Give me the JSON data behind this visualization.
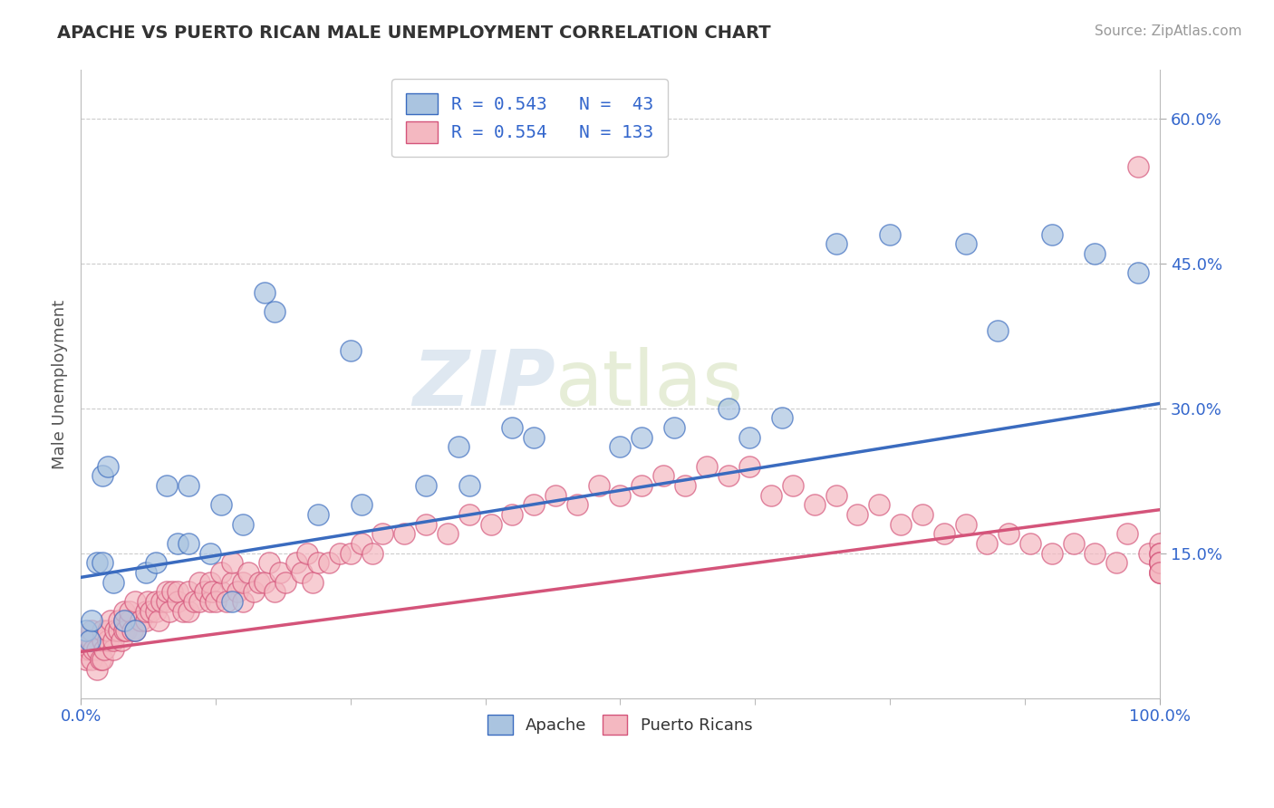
{
  "title": "APACHE VS PUERTO RICAN MALE UNEMPLOYMENT CORRELATION CHART",
  "source_text": "Source: ZipAtlas.com",
  "ylabel": "Male Unemployment",
  "xlim": [
    0.0,
    1.0
  ],
  "ylim": [
    0.0,
    0.65
  ],
  "xtick_labels": [
    "0.0%",
    "100.0%"
  ],
  "xtick_positions": [
    0.0,
    1.0
  ],
  "ytick_labels": [
    "15.0%",
    "30.0%",
    "45.0%",
    "60.0%"
  ],
  "ytick_positions": [
    0.15,
    0.3,
    0.45,
    0.6
  ],
  "apache_color": "#aac4e0",
  "apache_line_color": "#3a6bbf",
  "pr_color": "#f4b8c1",
  "pr_line_color": "#d4547a",
  "watermark_color": "#ccd9e8",
  "watermark_text": "ZIPatlas",
  "apache_R": 0.543,
  "apache_N": 43,
  "pr_R": 0.554,
  "pr_N": 133,
  "apache_line_x": [
    0.0,
    1.0
  ],
  "apache_line_y": [
    0.125,
    0.305
  ],
  "pr_line_x": [
    0.0,
    1.0
  ],
  "pr_line_y": [
    0.048,
    0.195
  ],
  "apache_x": [
    0.005,
    0.008,
    0.01,
    0.015,
    0.02,
    0.02,
    0.025,
    0.03,
    0.04,
    0.05,
    0.06,
    0.07,
    0.08,
    0.09,
    0.1,
    0.1,
    0.12,
    0.13,
    0.14,
    0.15,
    0.17,
    0.18,
    0.22,
    0.25,
    0.26,
    0.32,
    0.35,
    0.36,
    0.4,
    0.42,
    0.5,
    0.52,
    0.55,
    0.6,
    0.62,
    0.65,
    0.7,
    0.75,
    0.82,
    0.85,
    0.9,
    0.94,
    0.98
  ],
  "apache_y": [
    0.07,
    0.06,
    0.08,
    0.14,
    0.14,
    0.23,
    0.24,
    0.12,
    0.08,
    0.07,
    0.13,
    0.14,
    0.22,
    0.16,
    0.16,
    0.22,
    0.15,
    0.2,
    0.1,
    0.18,
    0.42,
    0.4,
    0.19,
    0.36,
    0.2,
    0.22,
    0.26,
    0.22,
    0.28,
    0.27,
    0.26,
    0.27,
    0.28,
    0.3,
    0.27,
    0.29,
    0.47,
    0.48,
    0.47,
    0.38,
    0.48,
    0.46,
    0.44
  ],
  "pr_x": [
    0.003,
    0.005,
    0.006,
    0.008,
    0.01,
    0.01,
    0.01,
    0.012,
    0.015,
    0.015,
    0.018,
    0.02,
    0.02,
    0.02,
    0.022,
    0.025,
    0.025,
    0.028,
    0.03,
    0.03,
    0.032,
    0.035,
    0.035,
    0.038,
    0.04,
    0.04,
    0.04,
    0.042,
    0.045,
    0.045,
    0.048,
    0.05,
    0.05,
    0.055,
    0.06,
    0.06,
    0.062,
    0.065,
    0.07,
    0.07,
    0.072,
    0.075,
    0.08,
    0.08,
    0.082,
    0.085,
    0.09,
    0.09,
    0.095,
    0.1,
    0.1,
    0.105,
    0.11,
    0.11,
    0.115,
    0.12,
    0.12,
    0.122,
    0.125,
    0.13,
    0.13,
    0.135,
    0.14,
    0.14,
    0.145,
    0.15,
    0.15,
    0.155,
    0.16,
    0.165,
    0.17,
    0.175,
    0.18,
    0.185,
    0.19,
    0.2,
    0.205,
    0.21,
    0.215,
    0.22,
    0.23,
    0.24,
    0.25,
    0.26,
    0.27,
    0.28,
    0.3,
    0.32,
    0.34,
    0.36,
    0.38,
    0.4,
    0.42,
    0.44,
    0.46,
    0.48,
    0.5,
    0.52,
    0.54,
    0.56,
    0.58,
    0.6,
    0.62,
    0.64,
    0.66,
    0.68,
    0.7,
    0.72,
    0.74,
    0.76,
    0.78,
    0.8,
    0.82,
    0.84,
    0.86,
    0.88,
    0.9,
    0.92,
    0.94,
    0.96,
    0.97,
    0.98,
    0.99,
    1.0,
    1.0,
    1.0,
    1.0,
    1.0,
    1.0,
    1.0,
    1.0,
    1.0,
    1.0
  ],
  "pr_y": [
    0.05,
    0.04,
    0.06,
    0.05,
    0.04,
    0.06,
    0.07,
    0.05,
    0.03,
    0.05,
    0.04,
    0.04,
    0.06,
    0.07,
    0.05,
    0.06,
    0.07,
    0.08,
    0.05,
    0.06,
    0.07,
    0.07,
    0.08,
    0.06,
    0.07,
    0.08,
    0.09,
    0.07,
    0.08,
    0.09,
    0.07,
    0.07,
    0.1,
    0.08,
    0.08,
    0.09,
    0.1,
    0.09,
    0.09,
    0.1,
    0.08,
    0.1,
    0.1,
    0.11,
    0.09,
    0.11,
    0.1,
    0.11,
    0.09,
    0.09,
    0.11,
    0.1,
    0.1,
    0.12,
    0.11,
    0.1,
    0.12,
    0.11,
    0.1,
    0.11,
    0.13,
    0.1,
    0.12,
    0.14,
    0.11,
    0.1,
    0.12,
    0.13,
    0.11,
    0.12,
    0.12,
    0.14,
    0.11,
    0.13,
    0.12,
    0.14,
    0.13,
    0.15,
    0.12,
    0.14,
    0.14,
    0.15,
    0.15,
    0.16,
    0.15,
    0.17,
    0.17,
    0.18,
    0.17,
    0.19,
    0.18,
    0.19,
    0.2,
    0.21,
    0.2,
    0.22,
    0.21,
    0.22,
    0.23,
    0.22,
    0.24,
    0.23,
    0.24,
    0.21,
    0.22,
    0.2,
    0.21,
    0.19,
    0.2,
    0.18,
    0.19,
    0.17,
    0.18,
    0.16,
    0.17,
    0.16,
    0.15,
    0.16,
    0.15,
    0.14,
    0.17,
    0.55,
    0.15,
    0.14,
    0.16,
    0.15,
    0.14,
    0.13,
    0.15,
    0.14,
    0.13,
    0.14,
    0.13
  ]
}
